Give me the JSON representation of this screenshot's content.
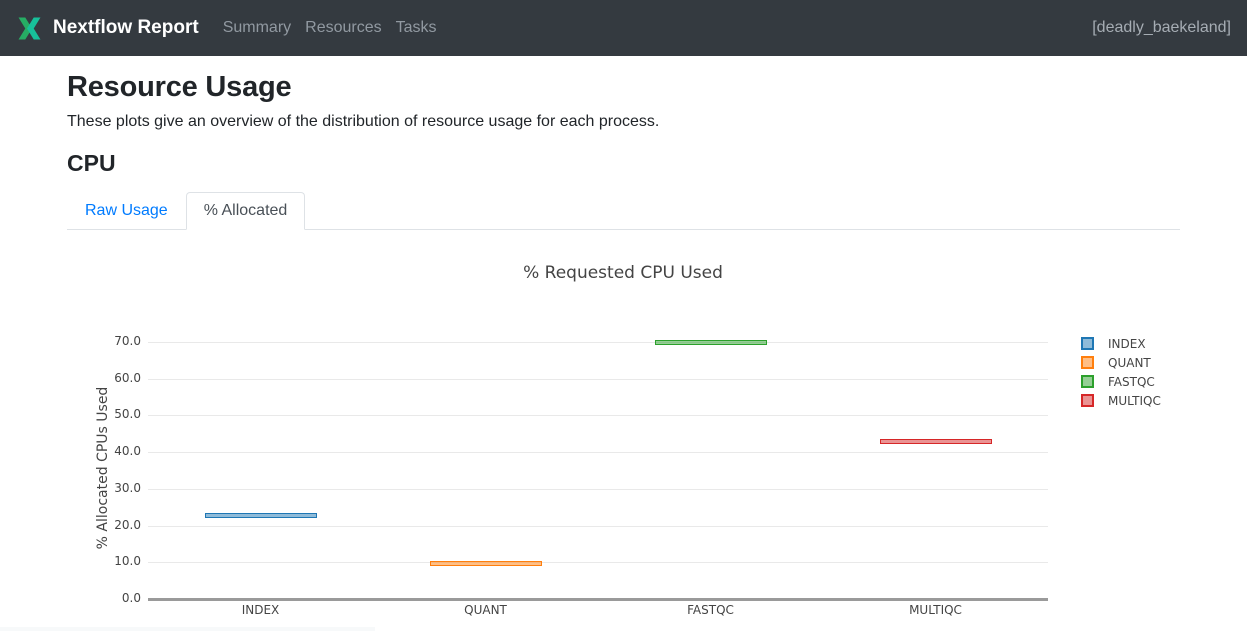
{
  "header": {
    "brand": "Nextflow Report",
    "nav": [
      {
        "label": "Summary"
      },
      {
        "label": "Resources"
      },
      {
        "label": "Tasks"
      }
    ],
    "run_name": "[deadly_baekeland]"
  },
  "page": {
    "title": "Resource Usage",
    "description": "These plots give an overview of the distribution of resource usage for each process.",
    "section_title": "CPU"
  },
  "tabs": [
    {
      "label": "Raw Usage",
      "active": false
    },
    {
      "label": "% Allocated",
      "active": true
    }
  ],
  "chart_data": {
    "type": "box",
    "title": "% Requested CPU Used",
    "xlabel": "",
    "ylabel": "% Allocated CPUs Used",
    "categories": [
      "INDEX",
      "QUANT",
      "FASTQC",
      "MULTIQC"
    ],
    "series": [
      {
        "name": "INDEX",
        "color": "#1f77b4",
        "value": 22.7
      },
      {
        "name": "QUANT",
        "color": "#ff7f0e",
        "value": 9.6
      },
      {
        "name": "FASTQC",
        "color": "#2ca02c",
        "value": 69.8
      },
      {
        "name": "MULTIQC",
        "color": "#d62728",
        "value": 42.8
      }
    ],
    "yticks": [
      0,
      10,
      20,
      30,
      40,
      50,
      60,
      70
    ],
    "ytick_labels": [
      "0.0",
      "10.0",
      "20.0",
      "30.0",
      "40.0",
      "50.0",
      "60.0",
      "70.0"
    ],
    "ylim": [
      0,
      75
    ],
    "grid": true,
    "legend_position": "right"
  },
  "colors": {
    "navbar_bg": "#343a40",
    "logo_teal": "#17c09a",
    "logo_green": "#26ad64",
    "tab_link": "#007bff",
    "axis_line": "#9a9a9a",
    "gridline": "#e9e9e9",
    "chart_text": "#444444"
  }
}
